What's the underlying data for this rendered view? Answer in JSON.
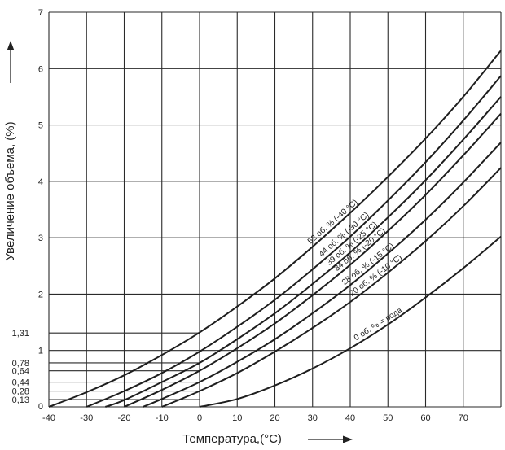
{
  "chart_data": {
    "type": "line",
    "title": "",
    "xlabel": "Температура,(°C)",
    "ylabel": "Увеличение объема, (%)",
    "xlim": [
      -40,
      80
    ],
    "ylim": [
      0,
      7
    ],
    "grid": true,
    "x_ticks": [
      "-40",
      "-30",
      "-20",
      "-10",
      "0",
      "10",
      "20",
      "30",
      "40",
      "50",
      "60",
      "70"
    ],
    "y_ticks_major": [
      "0",
      "1",
      "2",
      "3",
      "4",
      "5",
      "6",
      "7"
    ],
    "y_ticks_minor": [
      {
        "value": 0.13,
        "label": "0,13"
      },
      {
        "value": 0.28,
        "label": "0,28"
      },
      {
        "value": 0.44,
        "label": "0,44"
      },
      {
        "value": 0.64,
        "label": "0,64"
      },
      {
        "value": 0.78,
        "label": "0,78"
      },
      {
        "value": 1.31,
        "label": "1,31"
      }
    ],
    "series": [
      {
        "name": "52 об. % (-40 °C)",
        "x": [
          -40,
          -30,
          -20,
          -10,
          0,
          10,
          20,
          30,
          40,
          50,
          60,
          70,
          80
        ],
        "y": [
          0.0,
          0.26,
          0.56,
          0.92,
          1.32,
          1.78,
          2.28,
          2.84,
          3.44,
          4.08,
          4.76,
          5.5,
          6.32
        ]
      },
      {
        "name": "44 об. % (-30 °C)",
        "x": [
          -30,
          -20,
          -10,
          0,
          10,
          20,
          30,
          40,
          50,
          60,
          70,
          80
        ],
        "y": [
          0.0,
          0.28,
          0.6,
          0.98,
          1.42,
          1.9,
          2.44,
          3.02,
          3.66,
          4.34,
          5.08,
          5.87
        ]
      },
      {
        "name": "39 об. % (-25 °C)",
        "x": [
          -25,
          -20,
          -10,
          0,
          10,
          20,
          30,
          40,
          50,
          60,
          70,
          80
        ],
        "y": [
          0.0,
          0.12,
          0.44,
          0.78,
          1.2,
          1.66,
          2.18,
          2.74,
          3.36,
          4.02,
          4.74,
          5.5
        ]
      },
      {
        "name": "34 об. % (-20 °C)",
        "x": [
          -20,
          -10,
          0,
          10,
          20,
          30,
          40,
          50,
          60,
          70,
          80
        ],
        "y": [
          0.0,
          0.3,
          0.64,
          1.04,
          1.48,
          1.98,
          2.52,
          3.12,
          3.76,
          4.46,
          5.2
        ]
      },
      {
        "name": "28 об. % (-15 °C)",
        "x": [
          -15,
          -10,
          0,
          10,
          20,
          30,
          40,
          50,
          60,
          70,
          80
        ],
        "y": [
          0.0,
          0.14,
          0.44,
          0.8,
          1.2,
          1.66,
          2.16,
          2.72,
          3.32,
          3.98,
          4.69
        ]
      },
      {
        "name": "20 об. % (-10 °C)",
        "x": [
          -10,
          0,
          10,
          20,
          30,
          40,
          50,
          60,
          70,
          80
        ],
        "y": [
          0.0,
          0.28,
          0.6,
          0.98,
          1.4,
          1.86,
          2.38,
          2.94,
          3.56,
          4.24
        ]
      },
      {
        "name": "0 об. % = вода",
        "x": [
          0,
          10,
          20,
          30,
          40,
          50,
          60,
          70,
          80
        ],
        "y": [
          0.0,
          0.14,
          0.38,
          0.68,
          1.04,
          1.46,
          1.94,
          2.46,
          3.02
        ]
      }
    ]
  }
}
